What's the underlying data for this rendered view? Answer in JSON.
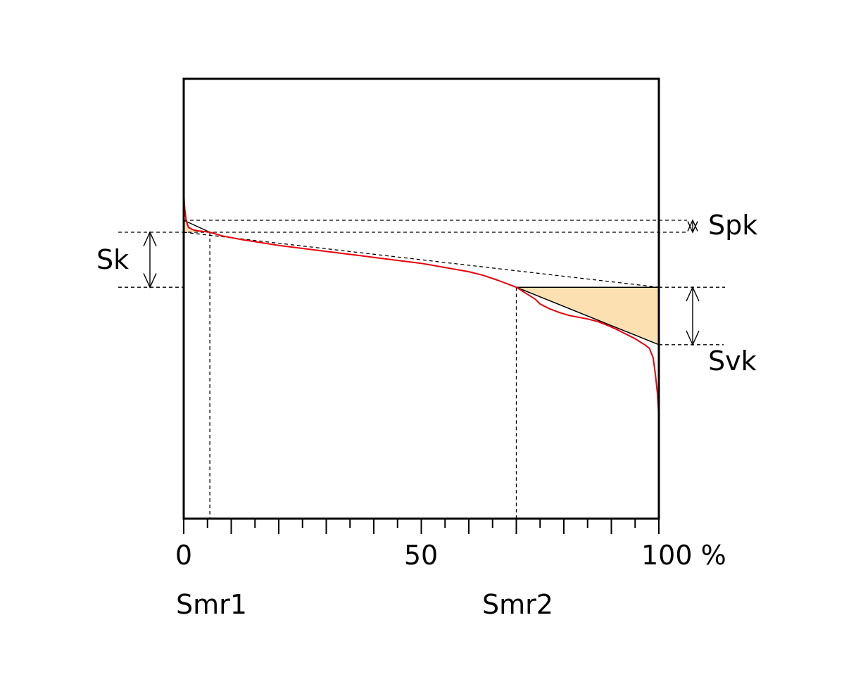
{
  "chart_data": {
    "type": "line",
    "title": "",
    "xlabel": "",
    "ylabel": "",
    "xlim": [
      0,
      100
    ],
    "x_unit": "%",
    "x_ticks": [
      {
        "value": 0,
        "label": "0"
      },
      {
        "value": 50,
        "label": "50"
      },
      {
        "value": 100,
        "label": "100 %"
      }
    ],
    "minor_tick_step": 5,
    "grid": false,
    "colors": {
      "curve": "#e8000b",
      "fill": "#fde0b2",
      "frame": "#000000"
    },
    "series": [
      {
        "x": [
          0,
          0.2,
          0.5,
          1,
          2,
          3,
          4,
          5.5,
          8,
          12,
          20,
          30,
          40,
          50,
          55,
          60,
          63,
          66,
          68,
          70,
          72,
          74,
          75,
          77,
          79,
          81,
          83,
          85,
          87,
          89,
          91,
          93,
          95,
          96,
          97,
          98,
          98.8,
          99.3,
          99.7,
          100
        ],
        "y": [
          3.4,
          2.0,
          1.0,
          0.4,
          0.2,
          0.12,
          0.07,
          0.0,
          -0.3,
          -0.6,
          -1.1,
          -1.6,
          -2.1,
          -2.6,
          -2.95,
          -3.3,
          -3.6,
          -4.0,
          -4.3,
          -4.6,
          -5.1,
          -5.6,
          -6.0,
          -6.4,
          -6.7,
          -6.95,
          -7.1,
          -7.25,
          -7.45,
          -7.75,
          -8.1,
          -8.5,
          -8.9,
          -9.15,
          -9.4,
          -9.7,
          -10.5,
          -12.0,
          -13.5,
          -15.5
        ]
      }
    ],
    "tangent": {
      "x": [
        0,
        100
      ],
      "y": [
        0,
        -4.6
      ]
    },
    "annotations": [
      {
        "type": "span",
        "text": "Spk",
        "y": [
          0,
          1.0
        ]
      },
      {
        "type": "span",
        "text": "Sk",
        "y": [
          -4.6,
          0
        ]
      },
      {
        "type": "span",
        "text": "Svk",
        "y": [
          -9.4,
          -4.6
        ]
      },
      {
        "type": "marker",
        "text": "Smr1",
        "x": 5.5
      },
      {
        "type": "marker",
        "text": "Smr2",
        "x": 70
      }
    ]
  }
}
